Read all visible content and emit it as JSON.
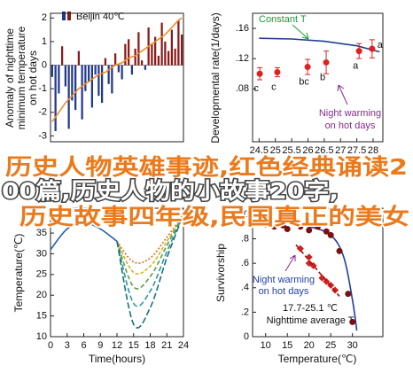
{
  "overlay_text": [
    "历史人物英雄事迹,红色经典诵读2",
    "00篇,历史人物的小故事20字,",
    "历史故事四年级,民国真正的美女"
  ],
  "chart_data": [
    {
      "type": "bar",
      "title": "Beijin 40℃",
      "ylabel": [
        "Anomaly of nighttime",
        "minimum temperature",
        "on hot days"
      ],
      "values": [
        -0.5,
        -2.8,
        -1.2,
        0.8,
        -0.9,
        -2.7,
        -1.5,
        -1.9,
        0.6,
        -2.3,
        -1.1,
        -0.7,
        -1.8,
        -0.4,
        -1.3,
        -1.6,
        0.3,
        -0.8,
        -1.2,
        0.5,
        -0.3,
        -0.6,
        0.9,
        1.1,
        -0.4,
        0.7,
        1.4,
        0.2,
        -0.2,
        1.6,
        0.9,
        1.2,
        0.4,
        1.8,
        1.0,
        0.6,
        1.5,
        0.7,
        1.9,
        1.3
      ],
      "positive_color": "#8b1a1a",
      "negative_color": "#23398a",
      "trend": {
        "color": "#f28c28",
        "values": [
          -2.4,
          -2.2,
          -2.0,
          -1.8,
          -1.6,
          -1.45,
          -1.3,
          -1.15,
          -1.0,
          -0.9,
          -0.8,
          -0.7,
          -0.6,
          -0.5,
          -0.4,
          -0.35,
          -0.3,
          -0.2,
          -0.1,
          0,
          0.05,
          0.1,
          0.2,
          0.3,
          0.35,
          0.4,
          0.5,
          0.6,
          0.7,
          0.8,
          0.9,
          1.0,
          1.1,
          1.2,
          1.3,
          1.45,
          1.6,
          1.75,
          1.9,
          2.0
        ]
      },
      "ylim": [
        -3.25,
        2.2
      ],
      "yticks": [
        -3,
        -2,
        -1,
        0,
        1,
        2
      ]
    },
    {
      "type": "scatter",
      "ylabel": "Developmental rate(1/days)",
      "annotations": [
        "Constant T",
        "Night warming",
        "on hot days"
      ],
      "xlim": [
        24.3,
        28.3
      ],
      "xticks": [
        24.5,
        25,
        25.5,
        26,
        26.5,
        27,
        27.5,
        28
      ],
      "ylim": [
        0.01,
        0.18
      ],
      "yticks": [
        {
          "value": 0.08,
          "label": ".08"
        },
        {
          "value": 0.12,
          "label": ".12"
        },
        {
          "value": 0.16,
          "label": ".16"
        }
      ],
      "series": [
        {
          "type": "line",
          "color": "#1f3f8f",
          "x": [
            24.5,
            25.5,
            26.5,
            27.5,
            28.2
          ],
          "values": [
            0.147,
            0.146,
            0.143,
            0.137,
            0.129
          ]
        },
        {
          "type": "scatter",
          "color": "#e02020",
          "x": [
            24.52,
            25.06,
            25.99,
            26.56,
            27.57,
            27.97
          ],
          "values": [
            0.1,
            0.102,
            0.109,
            0.115,
            0.13,
            0.133
          ],
          "errors": [
            0.008,
            0.006,
            0.01,
            0.015,
            0.01,
            0.012
          ],
          "labels": [
            "c",
            "c",
            "bc",
            "b",
            "a",
            "a"
          ]
        }
      ]
    },
    {
      "type": "line",
      "ylabel": "Temperature(℃)",
      "xlabel": "Time(hours)",
      "smooth": true,
      "xlim": [
        0,
        24
      ],
      "xticks": [
        0,
        3,
        6,
        9,
        12,
        15,
        18,
        21,
        24
      ],
      "ylim": [
        10,
        41
      ],
      "yticks": [
        10,
        15,
        20,
        25,
        30,
        35
      ],
      "series": [
        {
          "color": "#1f5fb0",
          "x": [
            0,
            3,
            6,
            9,
            12
          ],
          "values": [
            31,
            36,
            37.5,
            36,
            33
          ]
        },
        {
          "color": "#e07020",
          "dash": "2,2",
          "x": [
            12,
            15,
            18,
            21,
            24
          ],
          "values": [
            33,
            28,
            29,
            34,
            39.5
          ]
        },
        {
          "color": "#d8b020",
          "dash": "4,2",
          "x": [
            12,
            15,
            18,
            21,
            24
          ],
          "values": [
            33,
            25.5,
            27,
            33,
            39.5
          ]
        },
        {
          "color": "#5aa040",
          "dash": "5,3",
          "x": [
            12,
            15,
            18,
            21,
            24
          ],
          "values": [
            33,
            22,
            24.5,
            32,
            39.5
          ]
        },
        {
          "color": "#2a9aa0",
          "dash": "6,3",
          "x": [
            12,
            15,
            18,
            21,
            24
          ],
          "values": [
            33,
            18,
            21,
            30.5,
            39.5
          ]
        },
        {
          "color": "#1a7080",
          "dash": "7,3",
          "x": [
            12,
            15,
            18,
            21,
            24
          ],
          "values": [
            33,
            13,
            17,
            29,
            39.5
          ]
        }
      ]
    },
    {
      "type": "scatter",
      "ylabel": "Survivorship",
      "xlabel": "Temperature(℃)",
      "annotations": [
        "Night warming",
        "on hot days",
        "17.7-25.1 ℃",
        "Nighttime average T"
      ],
      "xlim": [
        7,
        37
      ],
      "xticks": [
        10,
        15,
        20,
        25,
        30
      ],
      "ylim": [
        0,
        1.05
      ],
      "yticks": [
        0,
        {
          "value": 0.2,
          "label": ".2"
        },
        {
          "value": 0.4,
          "label": ".4"
        },
        {
          "value": 0.6,
          "label": ".6"
        },
        {
          "value": 0.8,
          "label": ".8"
        },
        {
          "value": 1,
          "label": "1.0"
        }
      ],
      "series": [
        {
          "type": "line",
          "color": "#1f3fa0",
          "smooth": true,
          "x": [
            8,
            15,
            20,
            25,
            28,
            30,
            31
          ],
          "values": [
            0.95,
            0.93,
            0.9,
            0.83,
            0.65,
            0.3,
            0.05
          ]
        },
        {
          "type": "scatter",
          "color": "#7a1010",
          "x": [
            10,
            12,
            14,
            15,
            17,
            18,
            20,
            22,
            24,
            25,
            27,
            29,
            30
          ],
          "values": [
            0.92,
            0.9,
            0.91,
            0.88,
            0.93,
            0.9,
            0.87,
            0.9,
            0.86,
            0.83,
            0.7,
            0.35,
            0.12
          ]
        },
        {
          "type": "scatter",
          "marker": "diamond",
          "color": "#d42020",
          "x": [
            18,
            20,
            20,
            21,
            23,
            24,
            25,
            26
          ],
          "values": [
            0.72,
            0.65,
            0.6,
            0.58,
            0.48,
            0.45,
            0.42,
            0.38
          ]
        },
        {
          "type": "line",
          "color": "#a01010",
          "dash": "5,3",
          "x": [
            17,
            27
          ],
          "values": [
            0.75,
            0.33
          ]
        }
      ]
    }
  ]
}
